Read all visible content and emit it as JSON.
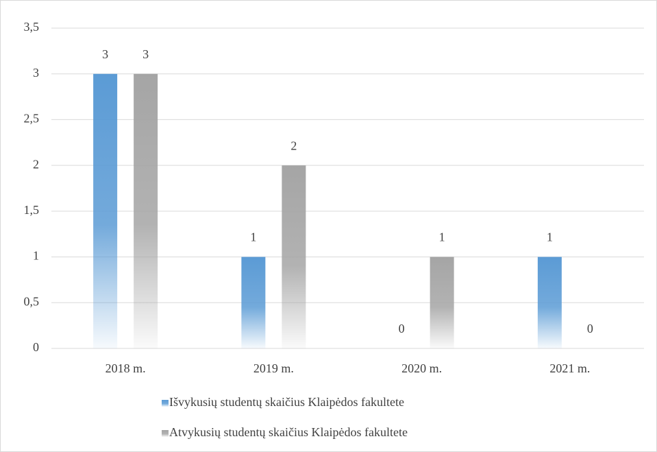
{
  "chart_data": {
    "type": "bar",
    "categories": [
      "2018 m.",
      "2019 m.",
      "2020 m.",
      "2021 m."
    ],
    "series": [
      {
        "name": "Išvykusių studentų skaičius Klaipėdos fakultete",
        "color": "#5b9bd5",
        "values": [
          3,
          1,
          0,
          1
        ]
      },
      {
        "name": "Atvykusių studentų skaičius Klaipėdos fakultete",
        "color": "#a5a5a5",
        "values": [
          3,
          2,
          1,
          0
        ]
      }
    ],
    "ylim": [
      0,
      3.5
    ],
    "yticks": [
      0,
      {
        "value": 0.5,
        "label": "0,5"
      },
      1,
      {
        "value": 1.5,
        "label": "1,5"
      },
      2,
      {
        "value": 2.5,
        "label": "2,5"
      },
      3,
      {
        "value": 3.5,
        "label": "3,5"
      }
    ],
    "grid": true,
    "legend": "bottom"
  }
}
